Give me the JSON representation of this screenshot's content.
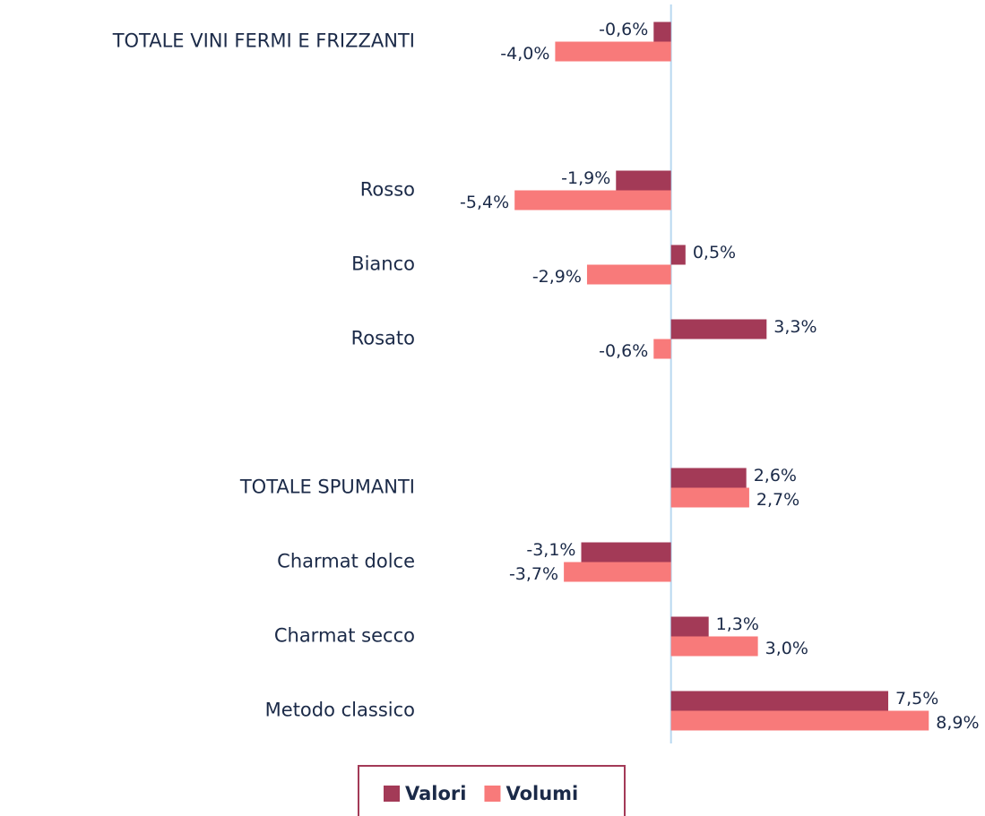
{
  "chart_data": {
    "type": "barh",
    "categories": [
      "TOTALE VINI FERMI E FRIZZANTI",
      null,
      "Rosso",
      "Bianco",
      "Rosato",
      null,
      "TOTALE SPUMANTI",
      "Charmat dolce",
      "Charmat secco",
      "Metodo classico"
    ],
    "series": [
      {
        "name": "Valori",
        "color": "#a33a57",
        "values": [
          -0.6,
          null,
          -1.9,
          0.5,
          3.3,
          null,
          2.6,
          -3.1,
          1.3,
          7.5
        ],
        "value_labels": [
          "-0,6%",
          null,
          "-1,9%",
          "0,5%",
          "3,3%",
          null,
          "2,6%",
          "-3,1%",
          "1,3%",
          "7,5%"
        ]
      },
      {
        "name": "Volumi",
        "color": "#f87a7a",
        "values": [
          -4.0,
          null,
          -5.4,
          -2.9,
          -0.6,
          null,
          2.7,
          -3.7,
          3.0,
          8.9
        ],
        "value_labels": [
          "-4,0%",
          null,
          "-5,4%",
          "-2,9%",
          "-0,6%",
          null,
          "2,7%",
          "-3,7%",
          "3,0%",
          "8,9%"
        ]
      }
    ],
    "xlim": [
      -8.5,
      9
    ],
    "legend": "bottom"
  }
}
